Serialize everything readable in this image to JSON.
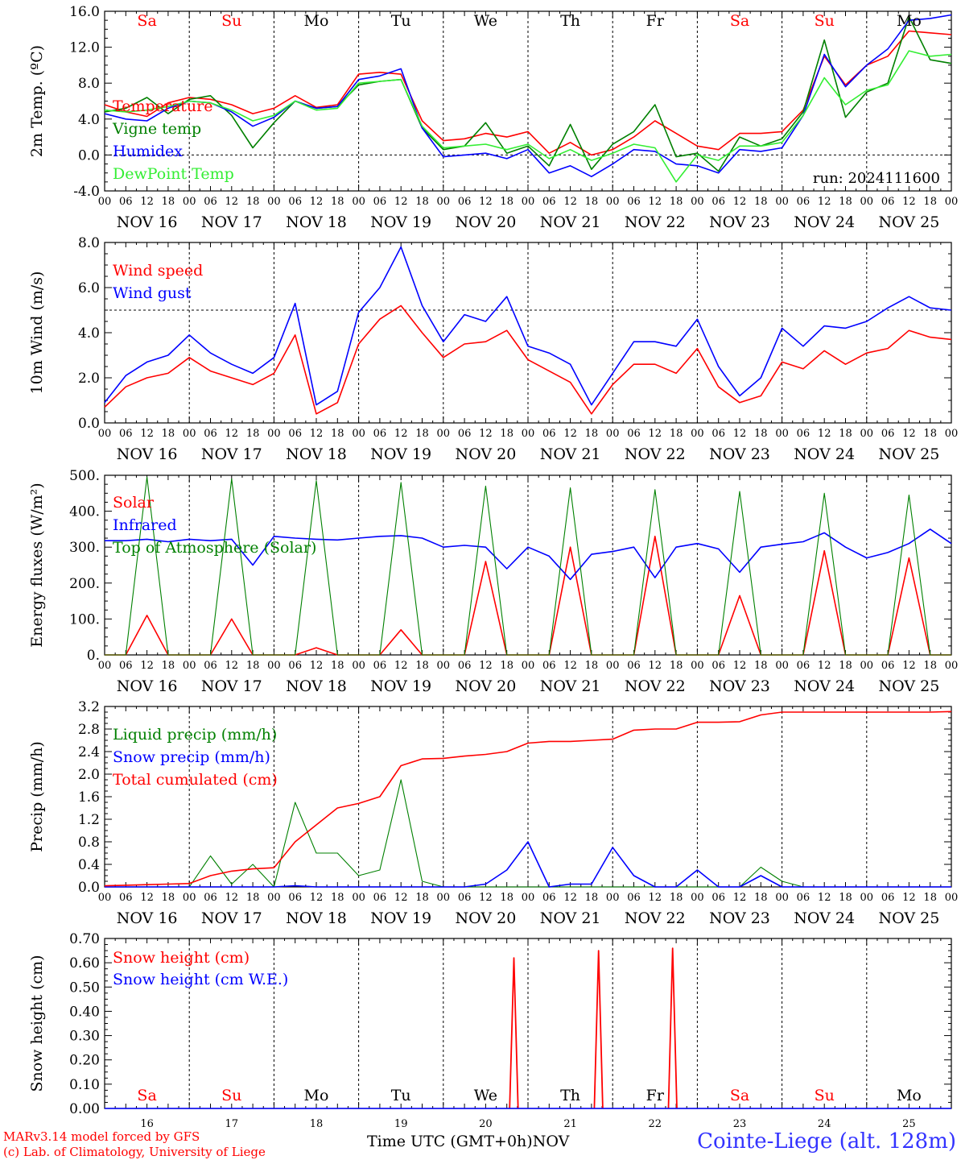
{
  "days": {
    "weekday_labels": [
      "Sa",
      "Su",
      "Mo",
      "Tu",
      "We",
      "Th",
      "Fr",
      "Sa",
      "Su",
      "Mo"
    ],
    "weekend_flags": [
      true,
      true,
      false,
      false,
      false,
      false,
      false,
      true,
      true,
      false
    ],
    "date_labels": [
      "NOV 16",
      "NOV 17",
      "NOV 18",
      "NOV 19",
      "NOV 20",
      "NOV 21",
      "NOV 22",
      "NOV 23",
      "NOV 24",
      "NOV 25"
    ],
    "hour_labels": [
      "00",
      "06",
      "12",
      "18"
    ],
    "final_hour_label": "00",
    "day_numbers": [
      "16",
      "17",
      "18",
      "19",
      "20",
      "21",
      "22",
      "23",
      "24",
      "25"
    ],
    "month_label": "NOV"
  },
  "footer": {
    "credit_line1": "MARv3.14 model forced by GFS",
    "credit_line2": "(c) Lab. of Climatology, University of Liege",
    "time_axis": "Time UTC (GMT+0h)",
    "station": "Cointe-Liege (alt. 128m)"
  },
  "colors": {
    "red": "#ff0000",
    "green": "#008000",
    "blue": "#0000ff",
    "lightgreen": "#33ee33"
  },
  "chart_data": [
    {
      "type": "line",
      "ylabel": "2m Temp. (ºC)",
      "ylim": [
        -4,
        16
      ],
      "yticks": [
        "-4.0",
        "0.0",
        "4.0",
        "8.0",
        "12.0",
        "16.0"
      ],
      "reference_line": 0,
      "annotation": "run: 2024111600",
      "x_hours": [
        0,
        6,
        12,
        18,
        24,
        30,
        36,
        42,
        48,
        54,
        60,
        66,
        72,
        78,
        84,
        90,
        96,
        102,
        108,
        114,
        120,
        126,
        132,
        138,
        144,
        150,
        156,
        162,
        168,
        174,
        180,
        186,
        192,
        198,
        204,
        210,
        216,
        222,
        228,
        234,
        240
      ],
      "series": [
        {
          "name": "Temperature",
          "color": "red",
          "values": [
            5.6,
            4.8,
            4.3,
            5.8,
            6.4,
            6.2,
            5.6,
            4.6,
            5.2,
            6.6,
            5.3,
            5.6,
            9.0,
            9.2,
            9.0,
            3.8,
            1.6,
            1.8,
            2.4,
            2.0,
            2.6,
            0.2,
            1.4,
            0.0,
            0.6,
            2.0,
            3.8,
            2.4,
            1.0,
            0.6,
            2.4,
            2.4,
            2.6,
            5.0,
            11.0,
            7.8,
            10.0,
            11.0,
            13.8,
            13.6,
            13.4
          ]
        },
        {
          "name": "Vigne temp",
          "color": "green",
          "values": [
            4.8,
            5.2,
            6.4,
            4.6,
            6.2,
            6.6,
            4.4,
            0.8,
            3.6,
            6.0,
            5.2,
            5.4,
            7.8,
            8.2,
            8.4,
            3.0,
            0.6,
            1.0,
            3.6,
            0.2,
            1.0,
            -1.2,
            3.4,
            -1.6,
            1.2,
            2.6,
            5.6,
            -0.2,
            0.2,
            -1.8,
            2.0,
            1.0,
            1.8,
            4.8,
            12.8,
            4.2,
            7.0,
            8.0,
            15.4,
            10.6,
            10.2
          ]
        },
        {
          "name": "Humidex",
          "color": "blue",
          "values": [
            4.6,
            4.0,
            3.8,
            5.2,
            6.0,
            5.8,
            4.8,
            3.2,
            4.2,
            6.0,
            5.2,
            5.4,
            8.4,
            8.8,
            9.6,
            3.0,
            -0.2,
            0.0,
            0.2,
            -0.4,
            0.6,
            -2.0,
            -1.2,
            -2.4,
            -1.0,
            0.6,
            0.4,
            -1.0,
            -1.2,
            -2.0,
            0.6,
            0.4,
            0.8,
            4.4,
            11.2,
            7.6,
            10.0,
            11.8,
            15.0,
            15.2,
            15.6
          ]
        },
        {
          "name": "DewPoint Temp",
          "color": "lightgreen",
          "values": [
            5.0,
            4.8,
            5.0,
            5.4,
            6.0,
            5.8,
            5.0,
            3.8,
            4.4,
            6.0,
            5.0,
            5.2,
            8.0,
            8.2,
            8.4,
            3.2,
            0.8,
            1.0,
            1.2,
            0.6,
            1.2,
            -0.4,
            0.6,
            -0.6,
            0.2,
            1.2,
            0.8,
            -3.0,
            0.0,
            -0.6,
            1.0,
            1.0,
            1.4,
            4.4,
            8.6,
            5.6,
            7.2,
            7.8,
            11.6,
            11.0,
            11.2
          ]
        }
      ]
    },
    {
      "type": "line",
      "ylabel": "10m Wind (m/s)",
      "ylim": [
        0,
        8
      ],
      "yticks": [
        "0.0",
        "2.0",
        "4.0",
        "6.0",
        "8.0"
      ],
      "reference_line": 5,
      "x_hours": [
        0,
        6,
        12,
        18,
        24,
        30,
        36,
        42,
        48,
        54,
        60,
        66,
        72,
        78,
        84,
        90,
        96,
        102,
        108,
        114,
        120,
        126,
        132,
        138,
        144,
        150,
        156,
        162,
        168,
        174,
        180,
        186,
        192,
        198,
        204,
        210,
        216,
        222,
        228,
        234,
        240
      ],
      "series": [
        {
          "name": "Wind speed",
          "color": "red",
          "values": [
            0.7,
            1.6,
            2.0,
            2.2,
            2.9,
            2.3,
            2.0,
            1.7,
            2.2,
            3.9,
            0.4,
            0.9,
            3.5,
            4.6,
            5.2,
            4.0,
            2.9,
            3.5,
            3.6,
            4.1,
            2.8,
            2.3,
            1.8,
            0.4,
            1.7,
            2.6,
            2.6,
            2.2,
            3.3,
            1.6,
            0.9,
            1.2,
            2.7,
            2.4,
            3.2,
            2.6,
            3.1,
            3.3,
            4.1,
            3.8,
            3.7
          ]
        },
        {
          "name": "Wind gust",
          "color": "blue",
          "values": [
            0.9,
            2.1,
            2.7,
            3.0,
            3.9,
            3.1,
            2.6,
            2.2,
            2.9,
            5.3,
            0.8,
            1.4,
            4.9,
            6.0,
            7.8,
            5.2,
            3.6,
            4.8,
            4.5,
            5.6,
            3.4,
            3.1,
            2.6,
            0.8,
            2.2,
            3.6,
            3.6,
            3.4,
            4.6,
            2.5,
            1.2,
            2.0,
            4.2,
            3.4,
            4.3,
            4.2,
            4.5,
            5.1,
            5.6,
            5.1,
            5.0
          ]
        }
      ]
    },
    {
      "type": "line",
      "ylabel": "Energy fluxes (W/m²)",
      "ylim": [
        0,
        500
      ],
      "yticks": [
        "0.",
        "100.",
        "200.",
        "300.",
        "400.",
        "500."
      ],
      "daily_peaks": {
        "solar": [
          110,
          100,
          20,
          70,
          260,
          300,
          330,
          165,
          290,
          270
        ],
        "toa_solar": [
          495,
          490,
          485,
          480,
          470,
          465,
          460,
          455,
          450,
          445
        ]
      },
      "x_hours": [
        0,
        6,
        12,
        18,
        24,
        30,
        36,
        42,
        48,
        54,
        60,
        66,
        72,
        78,
        84,
        90,
        96,
        102,
        108,
        114,
        120,
        126,
        132,
        138,
        144,
        150,
        156,
        162,
        168,
        174,
        180,
        186,
        192,
        198,
        204,
        210,
        216,
        222,
        228,
        234,
        240
      ],
      "series": [
        {
          "name": "Solar",
          "color": "red",
          "values": [
            0,
            0,
            110,
            0,
            0,
            0,
            100,
            0,
            0,
            0,
            20,
            0,
            0,
            0,
            70,
            0,
            0,
            0,
            260,
            0,
            0,
            0,
            300,
            0,
            0,
            0,
            330,
            0,
            0,
            0,
            165,
            0,
            0,
            0,
            290,
            0,
            0,
            0,
            270,
            0,
            0
          ]
        },
        {
          "name": "Infrared",
          "color": "blue",
          "values": [
            318,
            318,
            322,
            315,
            322,
            318,
            322,
            250,
            330,
            325,
            322,
            320,
            325,
            330,
            332,
            325,
            300,
            305,
            300,
            240,
            300,
            275,
            210,
            280,
            288,
            300,
            215,
            300,
            310,
            295,
            230,
            300,
            308,
            315,
            340,
            300,
            270,
            285,
            310,
            350,
            310
          ]
        },
        {
          "name": "Top of Atmosphere (Solar)",
          "color": "green",
          "values": [
            0,
            0,
            495,
            0,
            0,
            0,
            490,
            0,
            0,
            0,
            485,
            0,
            0,
            0,
            480,
            0,
            0,
            0,
            470,
            0,
            0,
            0,
            465,
            0,
            0,
            0,
            460,
            0,
            0,
            0,
            455,
            0,
            0,
            0,
            450,
            0,
            0,
            0,
            445,
            0,
            0
          ]
        }
      ]
    },
    {
      "type": "line",
      "ylabel": "Precip (mm/h)",
      "ylim": [
        0,
        3.2
      ],
      "yticks": [
        "0.0",
        "0.4",
        "0.8",
        "1.2",
        "1.6",
        "2.0",
        "2.4",
        "2.8",
        "3.2"
      ],
      "x_hours": [
        0,
        6,
        12,
        18,
        24,
        30,
        36,
        42,
        48,
        54,
        60,
        66,
        72,
        78,
        84,
        90,
        96,
        102,
        108,
        114,
        120,
        126,
        132,
        138,
        144,
        150,
        156,
        162,
        168,
        174,
        180,
        186,
        192,
        198,
        204,
        210,
        216,
        222,
        228,
        234,
        240
      ],
      "series": [
        {
          "name": "Liquid precip (mm/h)",
          "color": "green",
          "values": [
            0.0,
            0.0,
            0.0,
            0.0,
            0.0,
            0.55,
            0.05,
            0.4,
            0.0,
            1.5,
            0.6,
            0.6,
            0.2,
            0.3,
            1.9,
            0.1,
            0.0,
            0.0,
            0.0,
            0.0,
            0.0,
            0.0,
            0.0,
            0.0,
            0.0,
            0.0,
            0.0,
            0.0,
            0.0,
            0.0,
            0.0,
            0.35,
            0.1,
            0.0,
            0.0,
            0.0,
            0.0,
            0.0,
            0.0,
            0.0,
            0.0
          ]
        },
        {
          "name": "Snow precip (mm/h)",
          "color": "blue",
          "values": [
            0.0,
            0.0,
            0.0,
            0.0,
            0.0,
            0.0,
            0.0,
            0.0,
            0.0,
            0.02,
            0.0,
            0.0,
            0.0,
            0.0,
            0.0,
            0.0,
            0.0,
            0.0,
            0.05,
            0.3,
            0.8,
            0.0,
            0.05,
            0.05,
            0.7,
            0.2,
            0.0,
            0.0,
            0.3,
            0.0,
            0.0,
            0.2,
            0.0,
            0.0,
            0.0,
            0.0,
            0.0,
            0.0,
            0.0,
            0.0,
            0.0
          ]
        },
        {
          "name": "Total cumulated (cm)",
          "color": "red",
          "values": [
            0.02,
            0.03,
            0.04,
            0.05,
            0.06,
            0.2,
            0.28,
            0.32,
            0.34,
            0.8,
            1.1,
            1.4,
            1.48,
            1.6,
            2.15,
            2.27,
            2.28,
            2.32,
            2.35,
            2.4,
            2.55,
            2.58,
            2.58,
            2.6,
            2.62,
            2.78,
            2.8,
            2.8,
            2.92,
            2.92,
            2.93,
            3.05,
            3.1,
            3.1,
            3.1,
            3.1,
            3.1,
            3.1,
            3.1,
            3.1,
            3.11
          ]
        }
      ]
    },
    {
      "type": "line",
      "ylabel": "Snow height (cm)",
      "ylim": [
        0,
        0.7
      ],
      "yticks": [
        "0.00",
        "0.10",
        "0.20",
        "0.30",
        "0.40",
        "0.50",
        "0.60",
        "0.70"
      ],
      "series": [
        {
          "name": "Snow height (cm)",
          "color": "red",
          "spikes": [
            {
              "x_hour": 116,
              "value": 0.62
            },
            {
              "x_hour": 140,
              "value": 0.65
            },
            {
              "x_hour": 161,
              "value": 0.66
            }
          ]
        },
        {
          "name": "Snow height (cm W.E.)",
          "color": "blue",
          "values": [
            0,
            0
          ]
        }
      ]
    }
  ]
}
